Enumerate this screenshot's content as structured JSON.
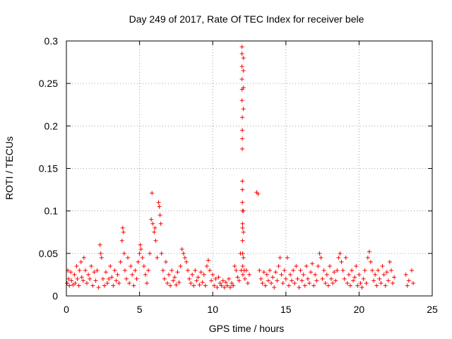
{
  "chart_data": {
    "type": "scatter",
    "title": "Day 249 of 2017, Rate Of TEC Index for receiver bele",
    "xlabel": "GPS time / hours",
    "ylabel": "ROTI / TECUs",
    "xlim": [
      0,
      25
    ],
    "ylim": [
      0,
      0.3
    ],
    "xticks": [
      0,
      5,
      10,
      15,
      20,
      25
    ],
    "yticks": [
      0,
      0.05,
      0.1,
      0.15,
      0.2,
      0.25,
      0.3
    ],
    "xtick_labels": [
      "0",
      "5",
      "10",
      "15",
      "20",
      "25"
    ],
    "ytick_labels": [
      "0",
      "0.05",
      "0.1",
      "0.15",
      "0.2",
      "0.25",
      "0.3"
    ],
    "grid": true,
    "marker": "plus",
    "color": "#ff0000",
    "series": [
      {
        "name": "",
        "points": [
          [
            0.05,
            0.015
          ],
          [
            0.1,
            0.03
          ],
          [
            0.15,
            0.02
          ],
          [
            0.2,
            0.012
          ],
          [
            0.3,
            0.028
          ],
          [
            0.35,
            0.018
          ],
          [
            0.45,
            0.013
          ],
          [
            0.55,
            0.025
          ],
          [
            0.6,
            0.015
          ],
          [
            0.7,
            0.035
          ],
          [
            0.75,
            0.02
          ],
          [
            0.85,
            0.012
          ],
          [
            0.9,
            0.03
          ],
          [
            1.0,
            0.04
          ],
          [
            1.05,
            0.022
          ],
          [
            1.15,
            0.018
          ],
          [
            1.2,
            0.045
          ],
          [
            1.3,
            0.03
          ],
          [
            1.4,
            0.015
          ],
          [
            1.5,
            0.025
          ],
          [
            1.6,
            0.02
          ],
          [
            1.7,
            0.035
          ],
          [
            1.8,
            0.012
          ],
          [
            1.9,
            0.028
          ],
          [
            2.0,
            0.018
          ],
          [
            2.1,
            0.03
          ],
          [
            2.2,
            0.01
          ],
          [
            2.3,
            0.06
          ],
          [
            2.35,
            0.05
          ],
          [
            2.4,
            0.045
          ],
          [
            2.5,
            0.02
          ],
          [
            2.6,
            0.012
          ],
          [
            2.7,
            0.028
          ],
          [
            2.8,
            0.015
          ],
          [
            2.9,
            0.02
          ],
          [
            3.0,
            0.035
          ],
          [
            3.1,
            0.022
          ],
          [
            3.2,
            0.012
          ],
          [
            3.3,
            0.03
          ],
          [
            3.4,
            0.018
          ],
          [
            3.5,
            0.025
          ],
          [
            3.6,
            0.015
          ],
          [
            3.7,
            0.04
          ],
          [
            3.8,
            0.065
          ],
          [
            3.85,
            0.08
          ],
          [
            3.9,
            0.075
          ],
          [
            3.95,
            0.05
          ],
          [
            4.0,
            0.03
          ],
          [
            4.1,
            0.02
          ],
          [
            4.2,
            0.045
          ],
          [
            4.3,
            0.015
          ],
          [
            4.4,
            0.035
          ],
          [
            4.5,
            0.025
          ],
          [
            4.6,
            0.012
          ],
          [
            4.7,
            0.03
          ],
          [
            4.8,
            0.02
          ],
          [
            4.9,
            0.04
          ],
          [
            5.0,
            0.05
          ],
          [
            5.05,
            0.06
          ],
          [
            5.1,
            0.055
          ],
          [
            5.2,
            0.045
          ],
          [
            5.3,
            0.035
          ],
          [
            5.4,
            0.025
          ],
          [
            5.5,
            0.015
          ],
          [
            5.6,
            0.03
          ],
          [
            5.7,
            0.05
          ],
          [
            5.8,
            0.09
          ],
          [
            5.85,
            0.121
          ],
          [
            5.9,
            0.085
          ],
          [
            6.0,
            0.075
          ],
          [
            6.05,
            0.08
          ],
          [
            6.1,
            0.065
          ],
          [
            6.2,
            0.045
          ],
          [
            6.3,
            0.11
          ],
          [
            6.35,
            0.105
          ],
          [
            6.4,
            0.095
          ],
          [
            6.45,
            0.085
          ],
          [
            6.5,
            0.05
          ],
          [
            6.6,
            0.03
          ],
          [
            6.7,
            0.02
          ],
          [
            6.8,
            0.04
          ],
          [
            6.9,
            0.015
          ],
          [
            7.0,
            0.025
          ],
          [
            7.1,
            0.012
          ],
          [
            7.2,
            0.03
          ],
          [
            7.3,
            0.018
          ],
          [
            7.4,
            0.022
          ],
          [
            7.5,
            0.013
          ],
          [
            7.6,
            0.028
          ],
          [
            7.7,
            0.016
          ],
          [
            7.8,
            0.035
          ],
          [
            7.9,
            0.055
          ],
          [
            8.0,
            0.05
          ],
          [
            8.1,
            0.045
          ],
          [
            8.2,
            0.04
          ],
          [
            8.3,
            0.03
          ],
          [
            8.4,
            0.02
          ],
          [
            8.5,
            0.015
          ],
          [
            8.6,
            0.025
          ],
          [
            8.7,
            0.012
          ],
          [
            8.8,
            0.03
          ],
          [
            8.9,
            0.018
          ],
          [
            9.0,
            0.022
          ],
          [
            9.1,
            0.013
          ],
          [
            9.2,
            0.028
          ],
          [
            9.3,
            0.016
          ],
          [
            9.4,
            0.025
          ],
          [
            9.5,
            0.012
          ],
          [
            9.6,
            0.035
          ],
          [
            9.7,
            0.042
          ],
          [
            9.8,
            0.03
          ],
          [
            9.9,
            0.018
          ],
          [
            10.0,
            0.025
          ],
          [
            10.1,
            0.012
          ],
          [
            10.2,
            0.02
          ],
          [
            10.3,
            0.01
          ],
          [
            10.4,
            0.022
          ],
          [
            10.5,
            0.015
          ],
          [
            10.6,
            0.012
          ],
          [
            10.7,
            0.018
          ],
          [
            10.8,
            0.01
          ],
          [
            10.9,
            0.016
          ],
          [
            11.0,
            0.012
          ],
          [
            11.1,
            0.02
          ],
          [
            11.2,
            0.01
          ],
          [
            11.3,
            0.015
          ],
          [
            11.4,
            0.012
          ],
          [
            11.5,
            0.035
          ],
          [
            11.6,
            0.03
          ],
          [
            11.7,
            0.022
          ],
          [
            11.8,
            0.018
          ],
          [
            11.9,
            0.05
          ],
          [
            11.95,
            0.03
          ],
          [
            12.0,
            0.293
          ],
          [
            12.0,
            0.285
          ],
          [
            12.0,
            0.27
          ],
          [
            12.0,
            0.255
          ],
          [
            12.0,
            0.243
          ],
          [
            12.0,
            0.23
          ],
          [
            12.02,
            0.21
          ],
          [
            12.02,
            0.195
          ],
          [
            12.02,
            0.185
          ],
          [
            12.02,
            0.173
          ],
          [
            12.03,
            0.135
          ],
          [
            12.03,
            0.125
          ],
          [
            12.03,
            0.11
          ],
          [
            12.03,
            0.1
          ],
          [
            12.04,
            0.085
          ],
          [
            12.04,
            0.08
          ],
          [
            12.04,
            0.065
          ],
          [
            12.05,
            0.05
          ],
          [
            12.05,
            0.035
          ],
          [
            12.06,
            0.025
          ],
          [
            12.1,
            0.28
          ],
          [
            12.1,
            0.265
          ],
          [
            12.1,
            0.245
          ],
          [
            12.1,
            0.22
          ],
          [
            12.1,
            0.1
          ],
          [
            12.1,
            0.075
          ],
          [
            12.1,
            0.045
          ],
          [
            12.15,
            0.03
          ],
          [
            12.2,
            0.02
          ],
          [
            12.3,
            0.03
          ],
          [
            12.4,
            0.015
          ],
          [
            12.5,
            0.025
          ],
          [
            13.0,
            0.122
          ],
          [
            13.1,
            0.12
          ],
          [
            13.2,
            0.03
          ],
          [
            13.3,
            0.02
          ],
          [
            13.4,
            0.015
          ],
          [
            13.5,
            0.028
          ],
          [
            13.6,
            0.012
          ],
          [
            13.7,
            0.025
          ],
          [
            13.8,
            0.018
          ],
          [
            13.9,
            0.03
          ],
          [
            14.0,
            0.015
          ],
          [
            14.1,
            0.022
          ],
          [
            14.2,
            0.01
          ],
          [
            14.3,
            0.028
          ],
          [
            14.4,
            0.018
          ],
          [
            14.5,
            0.035
          ],
          [
            14.6,
            0.045
          ],
          [
            14.7,
            0.025
          ],
          [
            14.8,
            0.015
          ],
          [
            14.9,
            0.03
          ],
          [
            15.0,
            0.02
          ],
          [
            15.1,
            0.045
          ],
          [
            15.2,
            0.012
          ],
          [
            15.3,
            0.025
          ],
          [
            15.4,
            0.018
          ],
          [
            15.5,
            0.03
          ],
          [
            15.6,
            0.015
          ],
          [
            15.7,
            0.035
          ],
          [
            15.8,
            0.02
          ],
          [
            15.9,
            0.01
          ],
          [
            16.0,
            0.03
          ],
          [
            16.1,
            0.018
          ],
          [
            16.2,
            0.025
          ],
          [
            16.3,
            0.012
          ],
          [
            16.4,
            0.035
          ],
          [
            16.5,
            0.02
          ],
          [
            16.6,
            0.015
          ],
          [
            16.7,
            0.028
          ],
          [
            16.8,
            0.038
          ],
          [
            16.9,
            0.012
          ],
          [
            17.0,
            0.025
          ],
          [
            17.1,
            0.018
          ],
          [
            17.2,
            0.035
          ],
          [
            17.3,
            0.05
          ],
          [
            17.4,
            0.045
          ],
          [
            17.5,
            0.02
          ],
          [
            17.6,
            0.03
          ],
          [
            17.7,
            0.015
          ],
          [
            17.8,
            0.025
          ],
          [
            17.9,
            0.012
          ],
          [
            18.0,
            0.035
          ],
          [
            18.1,
            0.02
          ],
          [
            18.2,
            0.015
          ],
          [
            18.3,
            0.028
          ],
          [
            18.4,
            0.018
          ],
          [
            18.5,
            0.03
          ],
          [
            18.6,
            0.045
          ],
          [
            18.7,
            0.05
          ],
          [
            18.8,
            0.04
          ],
          [
            18.9,
            0.03
          ],
          [
            19.0,
            0.02
          ],
          [
            19.1,
            0.045
          ],
          [
            19.2,
            0.015
          ],
          [
            19.3,
            0.025
          ],
          [
            19.4,
            0.012
          ],
          [
            19.5,
            0.03
          ],
          [
            19.6,
            0.018
          ],
          [
            19.7,
            0.022
          ],
          [
            19.8,
            0.035
          ],
          [
            19.9,
            0.012
          ],
          [
            20.0,
            0.025
          ],
          [
            20.1,
            0.015
          ],
          [
            20.2,
            0.01
          ],
          [
            20.3,
            0.02
          ],
          [
            20.4,
            0.03
          ],
          [
            20.5,
            0.015
          ],
          [
            20.6,
            0.045
          ],
          [
            20.7,
            0.052
          ],
          [
            20.8,
            0.04
          ],
          [
            20.9,
            0.03
          ],
          [
            21.0,
            0.018
          ],
          [
            21.1,
            0.025
          ],
          [
            21.2,
            0.012
          ],
          [
            21.3,
            0.03
          ],
          [
            21.4,
            0.02
          ],
          [
            21.5,
            0.015
          ],
          [
            21.6,
            0.035
          ],
          [
            21.7,
            0.025
          ],
          [
            21.8,
            0.012
          ],
          [
            21.9,
            0.028
          ],
          [
            22.0,
            0.018
          ],
          [
            22.1,
            0.04
          ],
          [
            22.2,
            0.03
          ],
          [
            22.3,
            0.015
          ],
          [
            22.4,
            0.022
          ],
          [
            23.2,
            0.025
          ],
          [
            23.3,
            0.012
          ],
          [
            23.4,
            0.018
          ],
          [
            23.6,
            0.03
          ],
          [
            23.7,
            0.015
          ]
        ]
      }
    ]
  }
}
